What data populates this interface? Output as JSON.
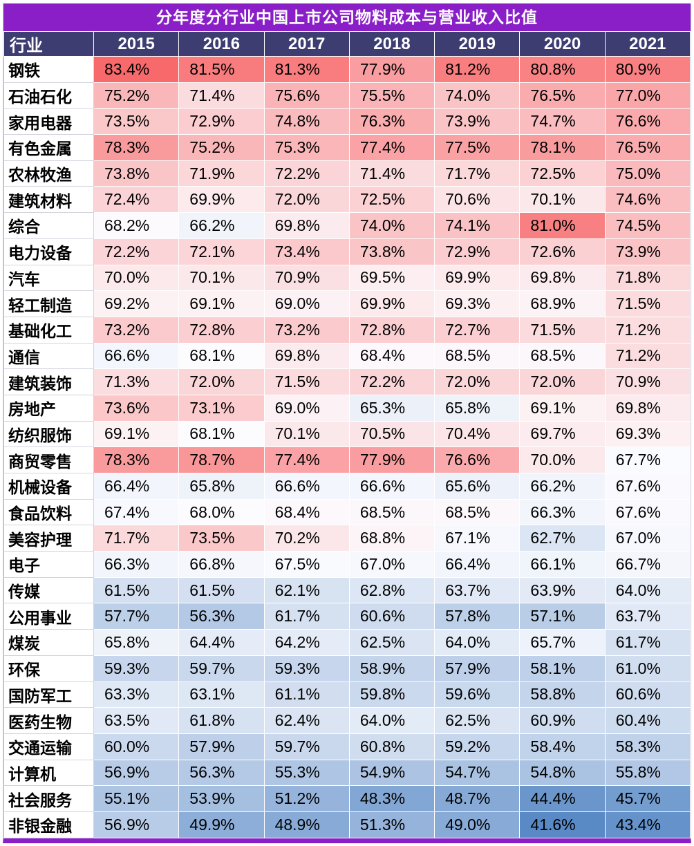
{
  "title": "分年度分行业中国上市公司物料成本与营业收入比值",
  "table": {
    "header_label": "行业",
    "value_suffix": "%"
  },
  "colors": {
    "title_bg": "#8A1FC8",
    "header_bg": "#3D3D72",
    "header_text": "#FFFFFF",
    "body_text": "#000000",
    "grid_line": "#FFFFFF"
  },
  "chart_data": {
    "type": "heatmap",
    "title": "分年度分行业中国上市公司物料成本与营业收入比值",
    "unit": "%",
    "columns": [
      "2015",
      "2016",
      "2017",
      "2018",
      "2019",
      "2020",
      "2021"
    ],
    "row_header": "行业",
    "rows": [
      {
        "industry": "钢铁",
        "values": [
          83.4,
          81.5,
          81.3,
          77.9,
          81.2,
          80.8,
          80.9
        ]
      },
      {
        "industry": "石油石化",
        "values": [
          75.2,
          71.4,
          75.6,
          75.5,
          74.0,
          76.5,
          77.0
        ]
      },
      {
        "industry": "家用电器",
        "values": [
          73.5,
          72.9,
          74.8,
          76.3,
          73.9,
          74.7,
          76.6
        ]
      },
      {
        "industry": "有色金属",
        "values": [
          78.3,
          75.2,
          75.3,
          77.4,
          77.5,
          78.1,
          76.5
        ]
      },
      {
        "industry": "农林牧渔",
        "values": [
          73.8,
          71.9,
          72.2,
          71.4,
          71.7,
          72.5,
          75.0
        ]
      },
      {
        "industry": "建筑材料",
        "values": [
          72.4,
          69.9,
          72.0,
          72.5,
          70.6,
          70.1,
          74.6
        ]
      },
      {
        "industry": "综合",
        "values": [
          68.2,
          66.2,
          69.8,
          74.0,
          74.1,
          81.0,
          74.5
        ]
      },
      {
        "industry": "电力设备",
        "values": [
          72.2,
          72.1,
          73.4,
          73.8,
          72.9,
          72.6,
          73.9
        ]
      },
      {
        "industry": "汽车",
        "values": [
          70.0,
          70.1,
          70.9,
          69.5,
          69.9,
          69.8,
          71.8
        ]
      },
      {
        "industry": "轻工制造",
        "values": [
          69.2,
          69.1,
          69.0,
          69.9,
          69.3,
          68.9,
          71.5
        ]
      },
      {
        "industry": "基础化工",
        "values": [
          73.2,
          72.8,
          73.2,
          72.8,
          72.7,
          71.5,
          71.2
        ]
      },
      {
        "industry": "通信",
        "values": [
          66.6,
          68.1,
          69.8,
          68.4,
          68.5,
          68.5,
          71.2
        ]
      },
      {
        "industry": "建筑装饰",
        "values": [
          71.3,
          72.0,
          71.5,
          72.2,
          72.0,
          72.0,
          70.9
        ]
      },
      {
        "industry": "房地产",
        "values": [
          73.6,
          73.1,
          69.0,
          65.3,
          65.8,
          69.1,
          69.8
        ]
      },
      {
        "industry": "纺织服饰",
        "values": [
          69.1,
          68.1,
          70.1,
          70.5,
          70.4,
          69.7,
          69.3
        ]
      },
      {
        "industry": "商贸零售",
        "values": [
          78.3,
          78.7,
          77.4,
          77.9,
          76.6,
          70.0,
          67.7
        ]
      },
      {
        "industry": "机械设备",
        "values": [
          66.4,
          65.8,
          66.6,
          66.6,
          65.6,
          66.2,
          67.6
        ]
      },
      {
        "industry": "食品饮料",
        "values": [
          67.4,
          68.0,
          68.4,
          68.5,
          68.5,
          66.3,
          67.6
        ]
      },
      {
        "industry": "美容护理",
        "values": [
          71.7,
          73.5,
          70.2,
          68.8,
          67.1,
          62.7,
          67.0
        ]
      },
      {
        "industry": "电子",
        "values": [
          66.3,
          66.8,
          67.5,
          67.0,
          66.4,
          66.1,
          66.7
        ]
      },
      {
        "industry": "传媒",
        "values": [
          61.5,
          61.5,
          62.1,
          62.8,
          63.7,
          63.9,
          64.0
        ]
      },
      {
        "industry": "公用事业",
        "values": [
          57.7,
          56.3,
          61.7,
          60.6,
          57.8,
          57.1,
          63.7
        ]
      },
      {
        "industry": "煤炭",
        "values": [
          65.8,
          64.4,
          64.2,
          62.5,
          64.0,
          65.7,
          61.7
        ]
      },
      {
        "industry": "环保",
        "values": [
          59.3,
          59.7,
          59.3,
          58.9,
          57.9,
          58.1,
          61.0
        ]
      },
      {
        "industry": "国防军工",
        "values": [
          63.3,
          63.1,
          61.1,
          59.8,
          59.6,
          58.8,
          60.6
        ]
      },
      {
        "industry": "医药生物",
        "values": [
          63.5,
          61.8,
          62.4,
          64.0,
          62.5,
          60.9,
          60.4
        ]
      },
      {
        "industry": "交通运输",
        "values": [
          60.0,
          57.9,
          59.7,
          60.8,
          59.2,
          58.4,
          58.3
        ]
      },
      {
        "industry": "计算机",
        "values": [
          56.9,
          56.3,
          55.3,
          54.9,
          54.7,
          54.8,
          55.8
        ]
      },
      {
        "industry": "社会服务",
        "values": [
          55.1,
          53.9,
          51.2,
          48.3,
          48.7,
          44.4,
          45.7
        ]
      },
      {
        "industry": "非银金融",
        "values": [
          56.9,
          49.9,
          48.9,
          51.3,
          49.0,
          41.6,
          43.4
        ]
      }
    ],
    "colorscale": {
      "min": 41.6,
      "mid": 68.0,
      "max": 83.4,
      "min_color": "#5A8AC6",
      "mid_color": "#FCFCFF",
      "max_color": "#F8696B"
    },
    "legend_position": "none",
    "grid": true
  }
}
